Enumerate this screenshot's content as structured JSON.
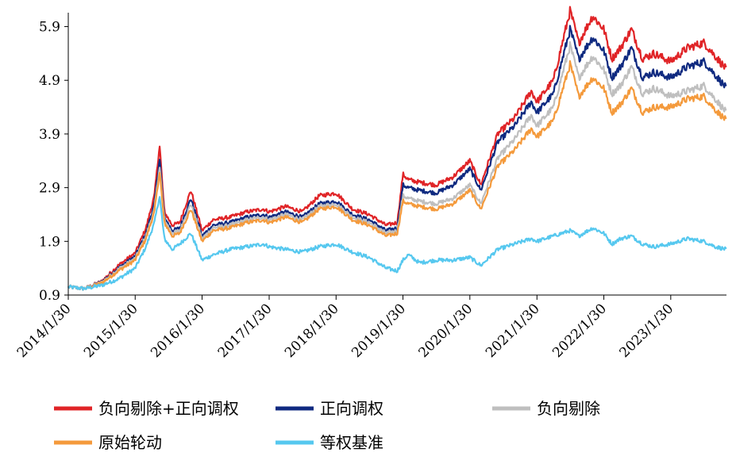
{
  "chart_data": {
    "type": "line",
    "x_ticks": [
      "2014/1/30",
      "2015/1/30",
      "2016/1/30",
      "2017/1/30",
      "2018/1/30",
      "2019/1/30",
      "2020/1/30",
      "2021/1/30",
      "2022/1/30",
      "2023/1/30"
    ],
    "y_ticks": [
      0.9,
      1.9,
      2.9,
      3.9,
      4.9,
      5.9
    ],
    "ylim": [
      0.9,
      6.1
    ],
    "xlim": [
      "2014/1/30",
      "2023/11/30"
    ],
    "grid": false,
    "legend_position": "bottom",
    "x": [
      "2014/1/30",
      "2014/4/30",
      "2014/7/30",
      "2014/10/30",
      "2015/1/30",
      "2015/3/30",
      "2015/5/15",
      "2015/6/12",
      "2015/7/8",
      "2015/8/20",
      "2015/9/30",
      "2015/11/30",
      "2016/1/30",
      "2016/3/30",
      "2016/6/30",
      "2016/9/30",
      "2016/12/30",
      "2017/1/30",
      "2017/4/30",
      "2017/7/30",
      "2017/10/30",
      "2018/1/30",
      "2018/4/30",
      "2018/7/30",
      "2018/10/30",
      "2018/12/30",
      "2019/1/30",
      "2019/2/28",
      "2019/4/30",
      "2019/7/30",
      "2019/10/30",
      "2020/1/30",
      "2020/3/30",
      "2020/6/30",
      "2020/9/30",
      "2020/12/30",
      "2021/1/30",
      "2021/4/30",
      "2021/7/30",
      "2021/9/15",
      "2021/11/30",
      "2022/1/30",
      "2022/3/15",
      "2022/4/30",
      "2022/6/30",
      "2022/8/30",
      "2022/10/30",
      "2023/1/30",
      "2023/4/30",
      "2023/7/30",
      "2023/9/30",
      "2023/11/30"
    ],
    "series": [
      {
        "name": "负向剔除+正向调权",
        "color": "#e02427",
        "values": [
          1.05,
          1.02,
          1.15,
          1.45,
          1.68,
          2.15,
          2.75,
          3.7,
          2.45,
          2.2,
          2.25,
          2.85,
          2.1,
          2.3,
          2.35,
          2.45,
          2.5,
          2.45,
          2.55,
          2.45,
          2.75,
          2.8,
          2.5,
          2.4,
          2.2,
          2.25,
          3.15,
          3.05,
          3.0,
          2.95,
          3.1,
          3.4,
          2.95,
          3.9,
          4.2,
          4.7,
          4.5,
          4.9,
          6.2,
          5.6,
          6.1,
          5.85,
          5.3,
          5.5,
          5.85,
          5.3,
          5.4,
          5.25,
          5.5,
          5.6,
          5.35,
          5.1
        ]
      },
      {
        "name": "正向调权",
        "color": "#0f2a80",
        "values": [
          1.05,
          1.02,
          1.14,
          1.4,
          1.62,
          2.05,
          2.6,
          3.45,
          2.35,
          2.1,
          2.15,
          2.7,
          2.0,
          2.2,
          2.25,
          2.35,
          2.4,
          2.35,
          2.45,
          2.35,
          2.6,
          2.65,
          2.4,
          2.3,
          2.1,
          2.15,
          2.95,
          2.9,
          2.85,
          2.8,
          2.95,
          3.25,
          2.85,
          3.75,
          4.05,
          4.5,
          4.3,
          4.65,
          5.85,
          5.3,
          5.7,
          5.45,
          4.95,
          5.15,
          5.5,
          4.95,
          5.05,
          4.95,
          5.15,
          5.25,
          5.0,
          4.75
        ]
      },
      {
        "name": "负向剔除",
        "color": "#bfbfbf",
        "values": [
          1.05,
          1.02,
          1.13,
          1.38,
          1.58,
          2.0,
          2.5,
          3.3,
          2.3,
          2.05,
          2.1,
          2.6,
          1.95,
          2.15,
          2.2,
          2.3,
          2.35,
          2.3,
          2.4,
          2.3,
          2.55,
          2.6,
          2.35,
          2.25,
          2.05,
          2.1,
          2.75,
          2.7,
          2.65,
          2.6,
          2.7,
          2.95,
          2.6,
          3.45,
          3.8,
          4.25,
          4.05,
          4.4,
          5.55,
          4.95,
          5.35,
          5.1,
          4.65,
          4.8,
          5.15,
          4.65,
          4.75,
          4.6,
          4.7,
          4.8,
          4.55,
          4.3
        ]
      },
      {
        "name": "原始轮动",
        "color": "#f49a3c",
        "values": [
          1.05,
          1.02,
          1.12,
          1.35,
          1.55,
          1.95,
          2.45,
          3.2,
          2.25,
          2.0,
          2.05,
          2.5,
          1.9,
          2.1,
          2.15,
          2.25,
          2.3,
          2.25,
          2.35,
          2.25,
          2.5,
          2.55,
          2.3,
          2.2,
          2.0,
          2.05,
          2.65,
          2.6,
          2.55,
          2.5,
          2.6,
          2.85,
          2.5,
          3.3,
          3.6,
          4.0,
          3.85,
          4.15,
          5.2,
          4.6,
          4.95,
          4.75,
          4.3,
          4.45,
          4.75,
          4.3,
          4.4,
          4.4,
          4.55,
          4.6,
          4.35,
          4.15
        ]
      },
      {
        "name": "等权基准",
        "color": "#56c8ef",
        "values": [
          1.05,
          1.02,
          1.08,
          1.2,
          1.4,
          1.8,
          2.25,
          2.75,
          1.95,
          1.75,
          1.85,
          2.05,
          1.55,
          1.65,
          1.75,
          1.8,
          1.85,
          1.8,
          1.75,
          1.7,
          1.8,
          1.85,
          1.7,
          1.6,
          1.4,
          1.35,
          1.55,
          1.65,
          1.5,
          1.55,
          1.55,
          1.6,
          1.45,
          1.75,
          1.85,
          1.95,
          1.9,
          2.0,
          2.1,
          2.0,
          2.15,
          2.05,
          1.85,
          1.95,
          2.0,
          1.85,
          1.8,
          1.85,
          1.95,
          1.9,
          1.8,
          1.75
        ]
      }
    ]
  }
}
